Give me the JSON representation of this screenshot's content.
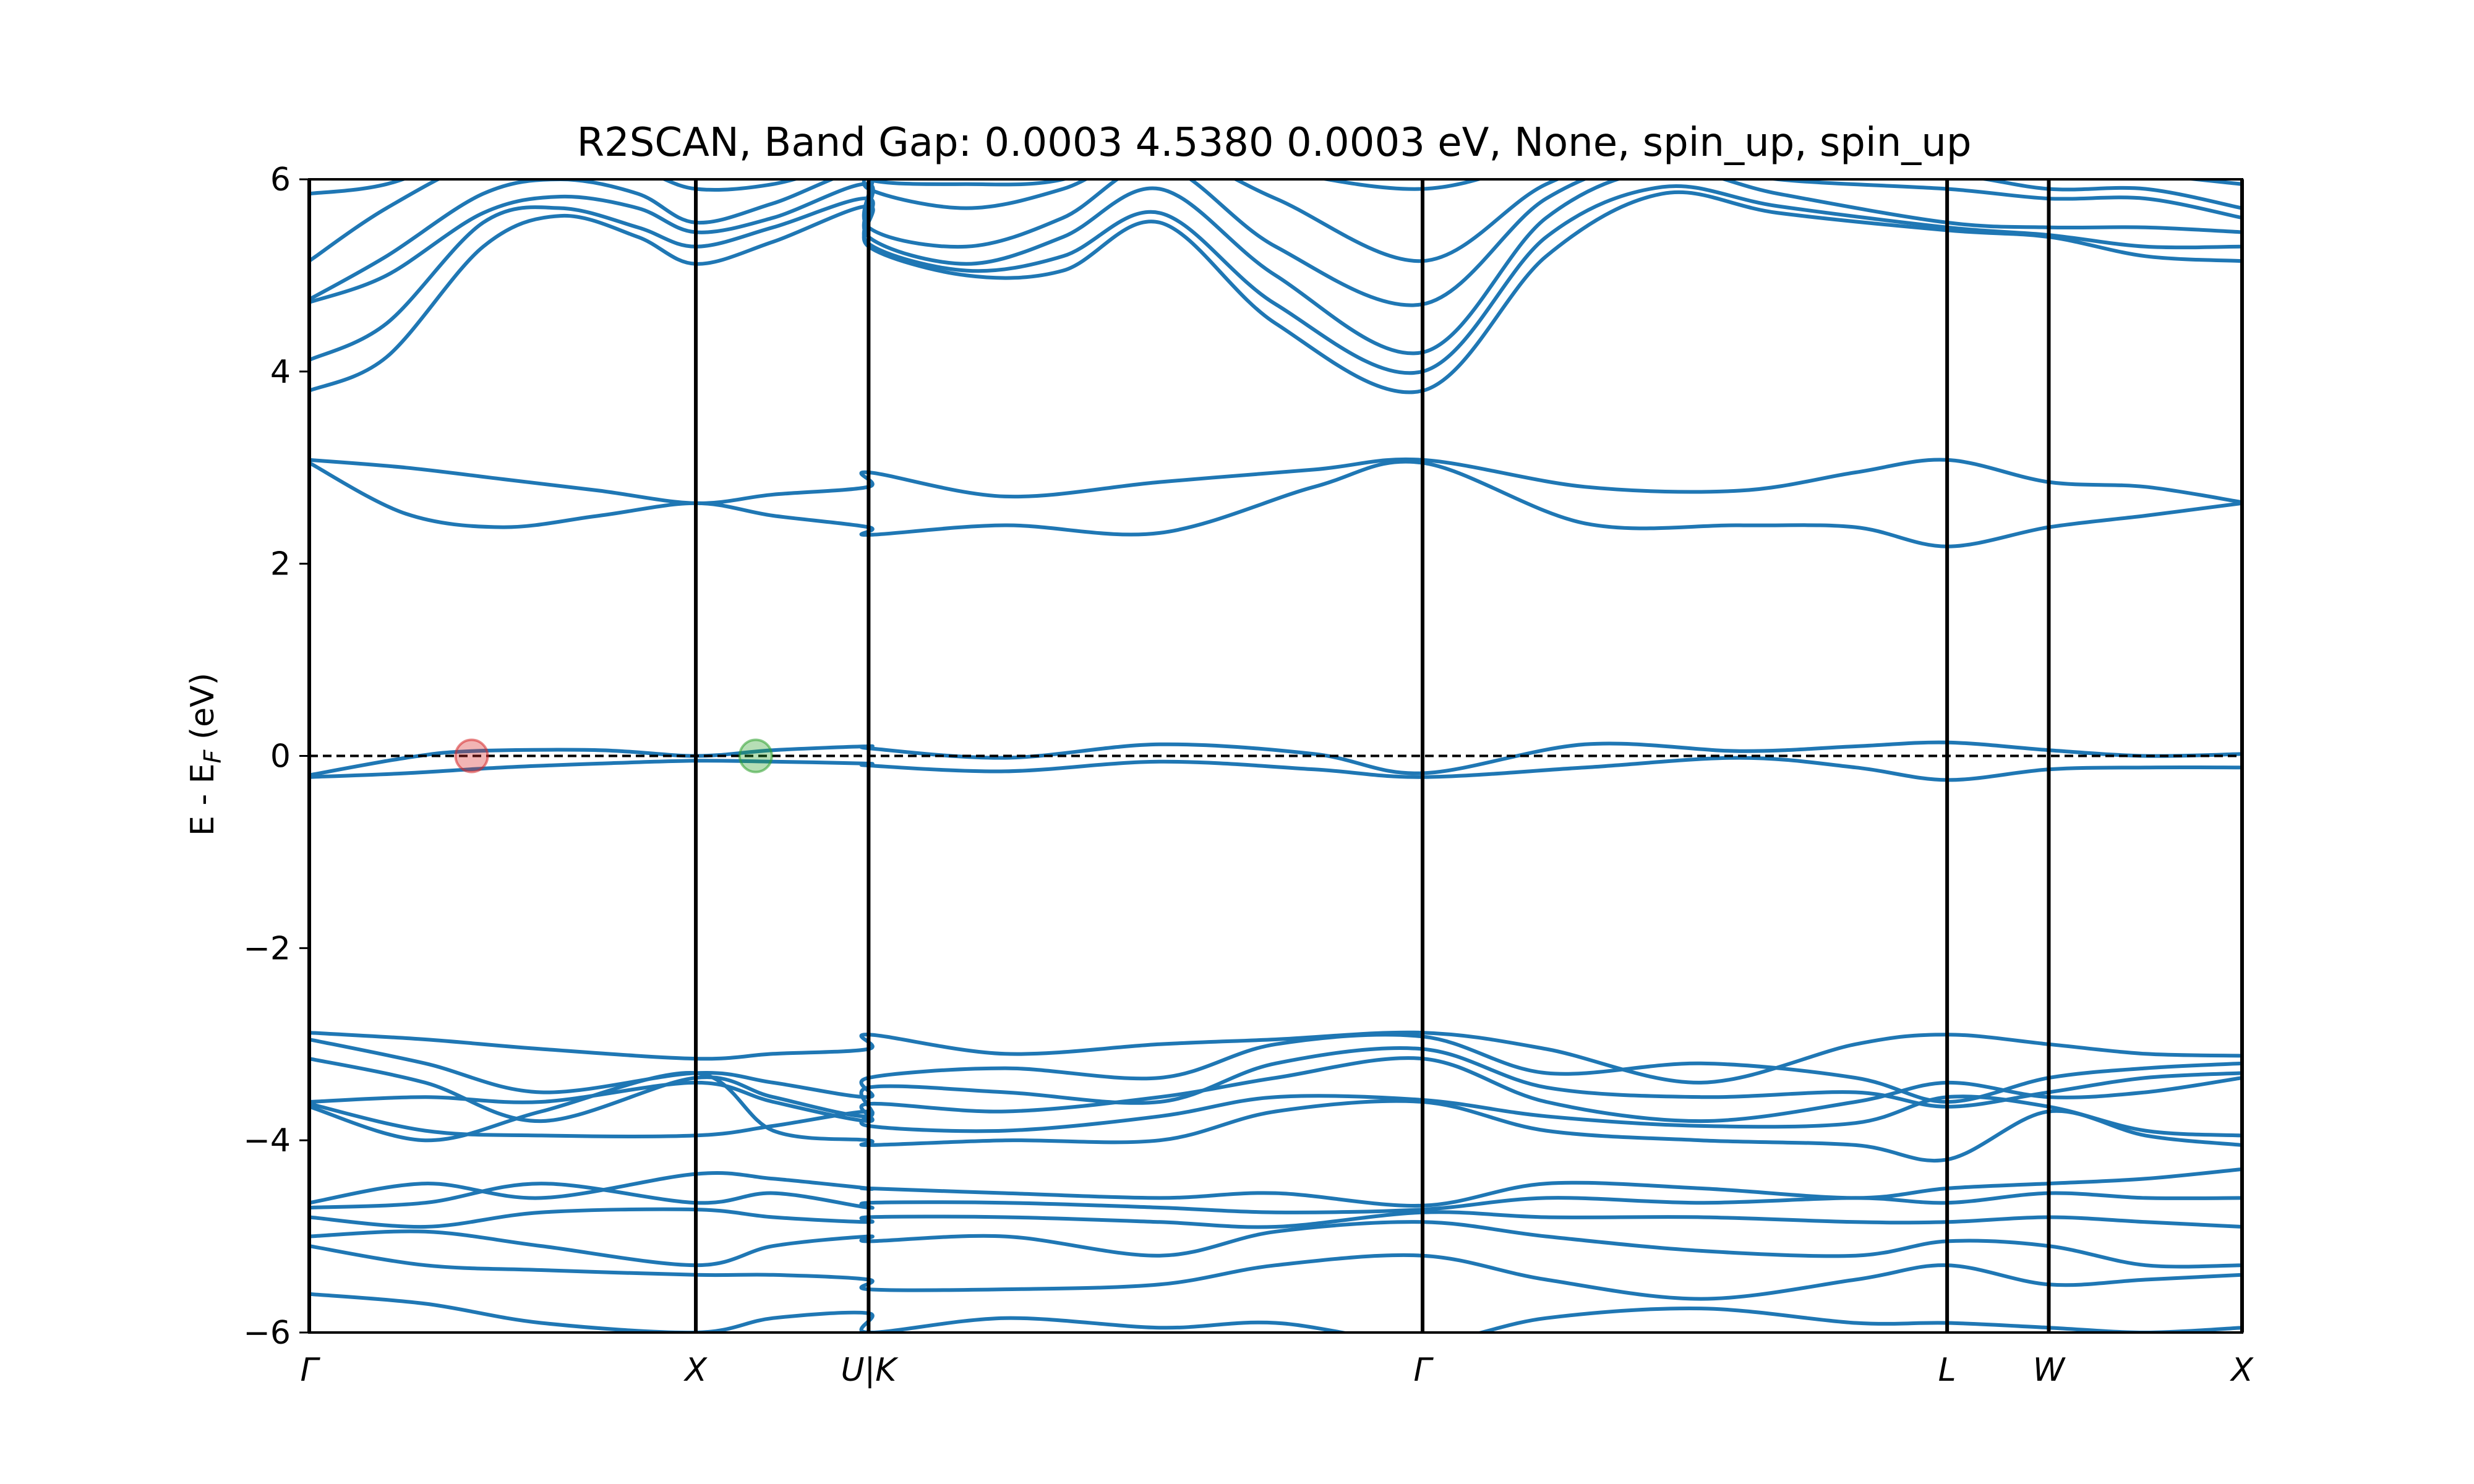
{
  "chart_data": {
    "type": "line",
    "title": "R2SCAN, Band Gap: 0.0003       4.5380       0.0003 eV, None, spin_up, spin_up",
    "xlabel": "",
    "ylabel_main": "E - E",
    "ylabel_sub": "F",
    "ylabel_unit": " (eV)",
    "ylim": [
      -6,
      6
    ],
    "xlim": [
      0,
      5.0
    ],
    "yticks": [
      -6,
      -4,
      -2,
      0,
      2,
      4,
      6
    ],
    "ytick_labels": [
      "−6",
      "−4",
      "−2",
      "0",
      "2",
      "4",
      "6"
    ],
    "kpoints": [
      {
        "label": "Γ",
        "x": 0.0
      },
      {
        "label": "X",
        "x": 1.0
      },
      {
        "label": "U|K",
        "x": 1.447
      },
      {
        "label": "Γ",
        "x": 2.88
      },
      {
        "label": "L",
        "x": 4.237
      },
      {
        "label": "W",
        "x": 4.5
      },
      {
        "label": "X",
        "x": 5.0
      }
    ],
    "fermi_level": 0,
    "line_color": "#1f77b4",
    "markers": [
      {
        "name": "cbm",
        "x": 0.42,
        "y": 0.0,
        "color": "#d62728"
      },
      {
        "name": "vbm",
        "x": 1.155,
        "y": 0.0,
        "color": "#2ca02c"
      }
    ],
    "series": [
      {
        "x": [
          0,
          0.25,
          0.5,
          0.75,
          1,
          1.2,
          1.447,
          1.447,
          1.8,
          2.2,
          2.6,
          2.88,
          3.3,
          3.7,
          4.0,
          4.237,
          4.5,
          4.75,
          5
        ],
        "y": [
          -0.22,
          -0.18,
          -0.12,
          -0.08,
          -0.05,
          -0.06,
          -0.08,
          -0.1,
          -0.16,
          -0.06,
          -0.14,
          -0.22,
          -0.12,
          -0.02,
          -0.12,
          -0.25,
          -0.14,
          -0.12,
          -0.12
        ]
      },
      {
        "x": [
          0,
          0.25,
          0.42,
          0.75,
          1,
          1.2,
          1.447,
          1.447,
          1.8,
          2.2,
          2.6,
          2.88,
          3.3,
          3.7,
          4.0,
          4.237,
          4.5,
          4.75,
          5
        ],
        "y": [
          -0.2,
          -0.02,
          0.05,
          0.06,
          0.0,
          0.06,
          0.1,
          0.08,
          -0.02,
          0.12,
          0.02,
          -0.18,
          0.12,
          0.05,
          0.1,
          0.14,
          0.06,
          0.0,
          0.02
        ]
      },
      {
        "x": [
          0,
          0.25,
          0.5,
          0.75,
          1,
          1.2,
          1.447,
          1.447,
          1.8,
          2.2,
          2.6,
          2.88,
          3.3,
          3.7,
          4.0,
          4.237,
          4.5,
          4.75,
          5
        ],
        "y": [
          3.08,
          3.0,
          2.88,
          2.76,
          2.63,
          2.72,
          2.8,
          2.95,
          2.7,
          2.85,
          2.98,
          3.08,
          2.8,
          2.76,
          2.95,
          3.08,
          2.85,
          2.8,
          2.64
        ]
      },
      {
        "x": [
          0,
          0.25,
          0.5,
          0.75,
          1,
          1.2,
          1.447,
          1.447,
          1.8,
          2.2,
          2.6,
          2.88,
          3.3,
          3.7,
          4.0,
          4.237,
          4.5,
          4.75,
          5
        ],
        "y": [
          3.05,
          2.52,
          2.38,
          2.5,
          2.63,
          2.5,
          2.38,
          2.3,
          2.4,
          2.32,
          2.8,
          3.05,
          2.42,
          2.4,
          2.38,
          2.18,
          2.38,
          2.5,
          2.63
        ]
      },
      {
        "x": [
          0,
          0.2,
          0.45,
          0.65,
          0.85,
          1,
          1.2,
          1.447,
          1.447,
          1.7,
          1.95,
          2.2,
          2.5,
          2.88,
          3.2,
          3.5,
          3.8,
          4.237,
          4.5,
          4.75,
          5
        ],
        "y": [
          3.8,
          4.15,
          5.3,
          5.62,
          5.4,
          5.12,
          5.35,
          5.72,
          5.3,
          5.0,
          5.05,
          5.55,
          4.5,
          3.8,
          5.2,
          5.85,
          5.65,
          5.47,
          5.4,
          5.2,
          5.15
        ]
      },
      {
        "x": [
          0,
          0.2,
          0.45,
          0.65,
          0.85,
          1,
          1.2,
          1.447,
          1.447,
          1.7,
          1.95,
          2.2,
          2.5,
          2.88,
          3.2,
          3.5,
          3.8,
          4.237,
          4.5,
          4.75,
          5
        ],
        "y": [
          4.12,
          4.5,
          5.55,
          5.7,
          5.5,
          5.3,
          5.5,
          5.8,
          5.33,
          5.05,
          5.2,
          5.65,
          4.7,
          4.0,
          5.4,
          5.92,
          5.72,
          5.5,
          5.42,
          5.3,
          5.3
        ]
      },
      {
        "x": [
          0,
          0.2,
          0.45,
          0.65,
          0.85,
          1,
          1.2,
          1.447,
          1.447,
          1.7,
          1.95,
          2.2,
          2.5,
          2.88,
          3.2,
          3.5,
          3.8,
          4.237,
          4.5,
          4.75,
          5
        ],
        "y": [
          4.72,
          5.0,
          5.65,
          5.82,
          5.7,
          5.45,
          5.6,
          5.95,
          5.4,
          5.12,
          5.4,
          5.9,
          5.0,
          4.2,
          5.6,
          6.1,
          5.85,
          5.55,
          5.5,
          5.5,
          5.45
        ]
      },
      {
        "x": [
          0,
          0.2,
          0.45,
          0.65,
          0.85,
          1,
          1.2,
          1.447,
          1.447,
          1.7,
          1.95,
          2.2,
          2.5,
          2.88,
          3.2,
          3.5,
          3.8,
          4.237,
          4.5,
          4.75,
          5
        ],
        "y": [
          4.75,
          5.2,
          5.85,
          6.0,
          5.85,
          5.55,
          5.75,
          6.1,
          5.5,
          5.3,
          5.6,
          6.15,
          5.3,
          4.7,
          5.8,
          6.2,
          6.0,
          5.9,
          5.8,
          5.8,
          5.6
        ]
      },
      {
        "x": [
          0,
          0.2,
          0.45,
          0.65,
          0.85,
          1,
          1.2,
          1.447,
          1.447,
          1.7,
          1.95,
          2.2,
          2.5,
          2.88,
          3.2,
          3.5,
          3.8,
          4.237,
          4.5,
          4.75,
          5
        ],
        "y": [
          5.15,
          5.7,
          6.2,
          6.2,
          6.1,
          5.9,
          5.95,
          6.2,
          5.9,
          5.7,
          5.9,
          6.3,
          5.8,
          5.15,
          5.95,
          6.3,
          6.1,
          6.05,
          5.9,
          5.9,
          5.7
        ]
      },
      {
        "x": [
          0,
          0.2,
          0.45,
          0.65,
          0.85,
          1,
          1.2,
          1.447,
          1.447,
          1.7,
          1.95,
          2.2,
          2.5,
          2.88,
          3.2,
          3.5,
          3.8,
          4.237,
          4.5,
          4.75,
          5
        ],
        "y": [
          5.85,
          5.95,
          6.3,
          6.4,
          6.3,
          6.1,
          6.2,
          6.3,
          6.0,
          5.95,
          6.0,
          6.4,
          6.1,
          5.9,
          6.2,
          6.4,
          6.3,
          6.2,
          6.1,
          6.05,
          5.95
        ]
      },
      {
        "x": [
          0,
          0.3,
          0.6,
          1,
          1.2,
          1.447,
          1.447,
          1.8,
          2.2,
          2.5,
          2.88,
          3.2,
          3.6,
          4.0,
          4.237,
          4.5,
          4.75,
          5
        ],
        "y": [
          -2.88,
          -2.95,
          -3.05,
          -3.15,
          -3.1,
          -3.05,
          -2.9,
          -3.1,
          -3.0,
          -2.95,
          -2.88,
          -3.05,
          -3.4,
          -3.0,
          -2.9,
          -3.0,
          -3.1,
          -3.12
        ]
      },
      {
        "x": [
          0,
          0.3,
          0.6,
          1,
          1.2,
          1.447,
          1.447,
          1.8,
          2.2,
          2.5,
          2.88,
          3.2,
          3.6,
          4.0,
          4.237,
          4.5,
          4.75,
          5
        ],
        "y": [
          -2.95,
          -3.2,
          -3.5,
          -3.3,
          -3.4,
          -3.55,
          -3.35,
          -3.25,
          -3.35,
          -3.0,
          -2.92,
          -3.3,
          -3.2,
          -3.35,
          -3.6,
          -3.35,
          -3.25,
          -3.2
        ]
      },
      {
        "x": [
          0,
          0.3,
          0.6,
          1,
          1.2,
          1.447,
          1.447,
          1.8,
          2.2,
          2.5,
          2.88,
          3.2,
          3.6,
          4.0,
          4.237,
          4.5,
          4.75,
          5
        ],
        "y": [
          -3.15,
          -3.4,
          -3.8,
          -3.35,
          -3.55,
          -3.75,
          -3.45,
          -3.5,
          -3.6,
          -3.2,
          -3.05,
          -3.45,
          -3.55,
          -3.5,
          -3.65,
          -3.5,
          -3.35,
          -3.3
        ]
      },
      {
        "x": [
          0,
          0.3,
          0.6,
          1,
          1.2,
          1.447,
          1.447,
          1.8,
          2.2,
          2.5,
          2.88,
          3.2,
          3.6,
          4.0,
          4.237,
          4.5,
          4.75,
          5
        ],
        "y": [
          -3.6,
          -3.55,
          -3.6,
          -3.4,
          -3.6,
          -3.8,
          -3.62,
          -3.7,
          -3.55,
          -3.35,
          -3.15,
          -3.6,
          -3.8,
          -3.6,
          -3.4,
          -3.55,
          -3.5,
          -3.35
        ]
      },
      {
        "x": [
          0,
          0.3,
          0.6,
          1,
          1.2,
          1.447,
          1.447,
          1.8,
          2.2,
          2.5,
          2.88,
          3.2,
          3.6,
          4.0,
          4.237,
          4.5,
          4.75,
          5
        ],
        "y": [
          -3.62,
          -3.9,
          -3.95,
          -3.95,
          -3.85,
          -3.7,
          -3.85,
          -3.9,
          -3.75,
          -3.55,
          -3.58,
          -3.75,
          -3.85,
          -3.82,
          -3.55,
          -3.65,
          -3.9,
          -3.95
        ]
      },
      {
        "x": [
          0,
          0.3,
          0.6,
          1,
          1.2,
          1.447,
          1.447,
          1.8,
          2.2,
          2.5,
          2.88,
          3.2,
          3.6,
          4.0,
          4.237,
          4.5,
          4.75,
          5
        ],
        "y": [
          -3.65,
          -4.0,
          -3.7,
          -3.3,
          -3.9,
          -4.0,
          -4.05,
          -4.0,
          -4.0,
          -3.7,
          -3.6,
          -3.9,
          -4.0,
          -4.05,
          -4.2,
          -3.7,
          -3.95,
          -4.05
        ]
      },
      {
        "x": [
          0,
          0.3,
          0.6,
          1,
          1.2,
          1.447,
          1.447,
          1.8,
          2.2,
          2.5,
          2.88,
          3.2,
          3.6,
          4.0,
          4.237,
          4.5,
          4.75,
          5
        ],
        "y": [
          -4.65,
          -4.45,
          -4.6,
          -4.35,
          -4.4,
          -4.5,
          -4.5,
          -4.55,
          -4.6,
          -4.55,
          -4.68,
          -4.45,
          -4.5,
          -4.6,
          -4.5,
          -4.45,
          -4.4,
          -4.3
        ]
      },
      {
        "x": [
          0,
          0.3,
          0.6,
          1,
          1.2,
          1.447,
          1.447,
          1.8,
          2.2,
          2.5,
          2.88,
          3.2,
          3.6,
          4.0,
          4.237,
          4.5,
          4.75,
          5
        ],
        "y": [
          -4.7,
          -4.65,
          -4.45,
          -4.65,
          -4.55,
          -4.7,
          -4.65,
          -4.65,
          -4.7,
          -4.75,
          -4.72,
          -4.6,
          -4.65,
          -4.6,
          -4.65,
          -4.55,
          -4.6,
          -4.6
        ]
      },
      {
        "x": [
          0,
          0.3,
          0.6,
          1,
          1.2,
          1.447,
          1.447,
          1.8,
          2.2,
          2.5,
          2.88,
          3.2,
          3.6,
          4.0,
          4.237,
          4.5,
          4.75,
          5
        ],
        "y": [
          -4.8,
          -4.9,
          -4.75,
          -4.72,
          -4.8,
          -4.85,
          -4.8,
          -4.8,
          -4.85,
          -4.9,
          -4.75,
          -4.8,
          -4.8,
          -4.85,
          -4.85,
          -4.8,
          -4.85,
          -4.9
        ]
      },
      {
        "x": [
          0,
          0.3,
          0.6,
          1,
          1.2,
          1.447,
          1.447,
          1.8,
          2.2,
          2.5,
          2.88,
          3.2,
          3.6,
          4.0,
          4.237,
          4.5,
          4.75,
          5
        ],
        "y": [
          -5.0,
          -4.95,
          -5.1,
          -5.3,
          -5.1,
          -5.0,
          -5.05,
          -5.0,
          -5.2,
          -4.95,
          -4.85,
          -5.0,
          -5.15,
          -5.2,
          -5.05,
          -5.1,
          -5.3,
          -5.3
        ]
      },
      {
        "x": [
          0,
          0.3,
          0.6,
          1,
          1.2,
          1.447,
          1.447,
          1.8,
          2.2,
          2.5,
          2.88,
          3.2,
          3.6,
          4.0,
          4.237,
          4.5,
          4.75,
          5
        ],
        "y": [
          -5.1,
          -5.3,
          -5.35,
          -5.4,
          -5.4,
          -5.45,
          -5.55,
          -5.55,
          -5.5,
          -5.3,
          -5.2,
          -5.45,
          -5.65,
          -5.45,
          -5.3,
          -5.5,
          -5.45,
          -5.4
        ]
      },
      {
        "x": [
          0,
          0.3,
          0.6,
          1,
          1.2,
          1.447,
          1.447,
          1.8,
          2.2,
          2.5,
          2.88,
          3.2,
          3.6,
          4.0,
          4.237,
          4.5,
          4.75,
          5
        ],
        "y": [
          -5.6,
          -5.7,
          -5.9,
          -6.0,
          -5.85,
          -5.8,
          -6.0,
          -5.85,
          -5.95,
          -5.9,
          -6.1,
          -5.85,
          -5.75,
          -5.9,
          -5.9,
          -5.95,
          -6.0,
          -5.95
        ]
      }
    ]
  }
}
